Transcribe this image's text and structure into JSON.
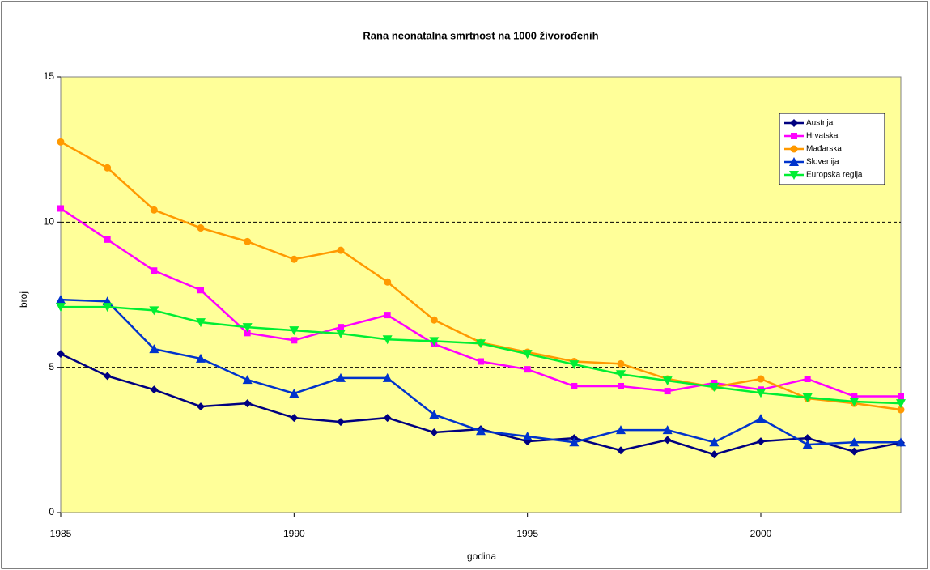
{
  "chart_data": {
    "type": "line",
    "title": "Rana neonatalna smrtnost na 1000 živorođenih",
    "x_label": "godina",
    "y_label": "broj",
    "x": [
      1985,
      1986,
      1987,
      1988,
      1989,
      1990,
      1991,
      1992,
      1993,
      1994,
      1995,
      1996,
      1997,
      1998,
      1999,
      2000,
      2001,
      2002,
      2003
    ],
    "xlim": [
      1985,
      2003
    ],
    "xticks": [
      1985,
      1990,
      1995,
      2000
    ],
    "ylim": [
      0,
      15
    ],
    "yticks": [
      0,
      5,
      10,
      15
    ],
    "grid": true,
    "legend": "upper right",
    "series": [
      {
        "name": "Austrija",
        "color": "#000080",
        "marker": "diamond",
        "values": [
          5.46,
          4.7,
          4.23,
          3.65,
          3.76,
          3.26,
          3.12,
          3.26,
          2.76,
          2.87,
          2.45,
          2.56,
          2.14,
          2.5,
          2.0,
          2.45,
          2.56,
          2.1,
          2.4
        ]
      },
      {
        "name": "Hrvatska",
        "color": "#ff00ff",
        "marker": "square",
        "values": [
          10.47,
          9.4,
          8.33,
          7.66,
          6.18,
          5.93,
          6.38,
          6.8,
          5.8,
          5.2,
          4.93,
          4.35,
          4.35,
          4.18,
          4.46,
          4.23,
          4.6,
          4.0,
          4.0
        ]
      },
      {
        "name": "Mađarska",
        "color": "#ff9900",
        "marker": "circle",
        "values": [
          12.76,
          11.87,
          10.42,
          9.8,
          9.33,
          8.72,
          9.03,
          7.94,
          6.63,
          5.85,
          5.52,
          5.2,
          5.12,
          4.6,
          4.32,
          4.6,
          3.93,
          3.76,
          3.54
        ]
      },
      {
        "name": "Slovenija",
        "color": "#0033cc",
        "marker": "triangle",
        "values": [
          7.33,
          7.27,
          5.63,
          5.3,
          4.57,
          4.1,
          4.63,
          4.63,
          3.37,
          2.81,
          2.62,
          2.42,
          2.84,
          2.84,
          2.42,
          3.23,
          2.34,
          2.42,
          2.42
        ]
      },
      {
        "name": "Europska regija",
        "color": "#00ee33",
        "marker": "triangle-down",
        "values": [
          7.08,
          7.08,
          6.96,
          6.55,
          6.38,
          6.27,
          6.16,
          5.96,
          5.9,
          5.82,
          5.46,
          5.1,
          4.76,
          4.54,
          4.32,
          4.12,
          3.96,
          3.82,
          3.76
        ]
      }
    ]
  }
}
